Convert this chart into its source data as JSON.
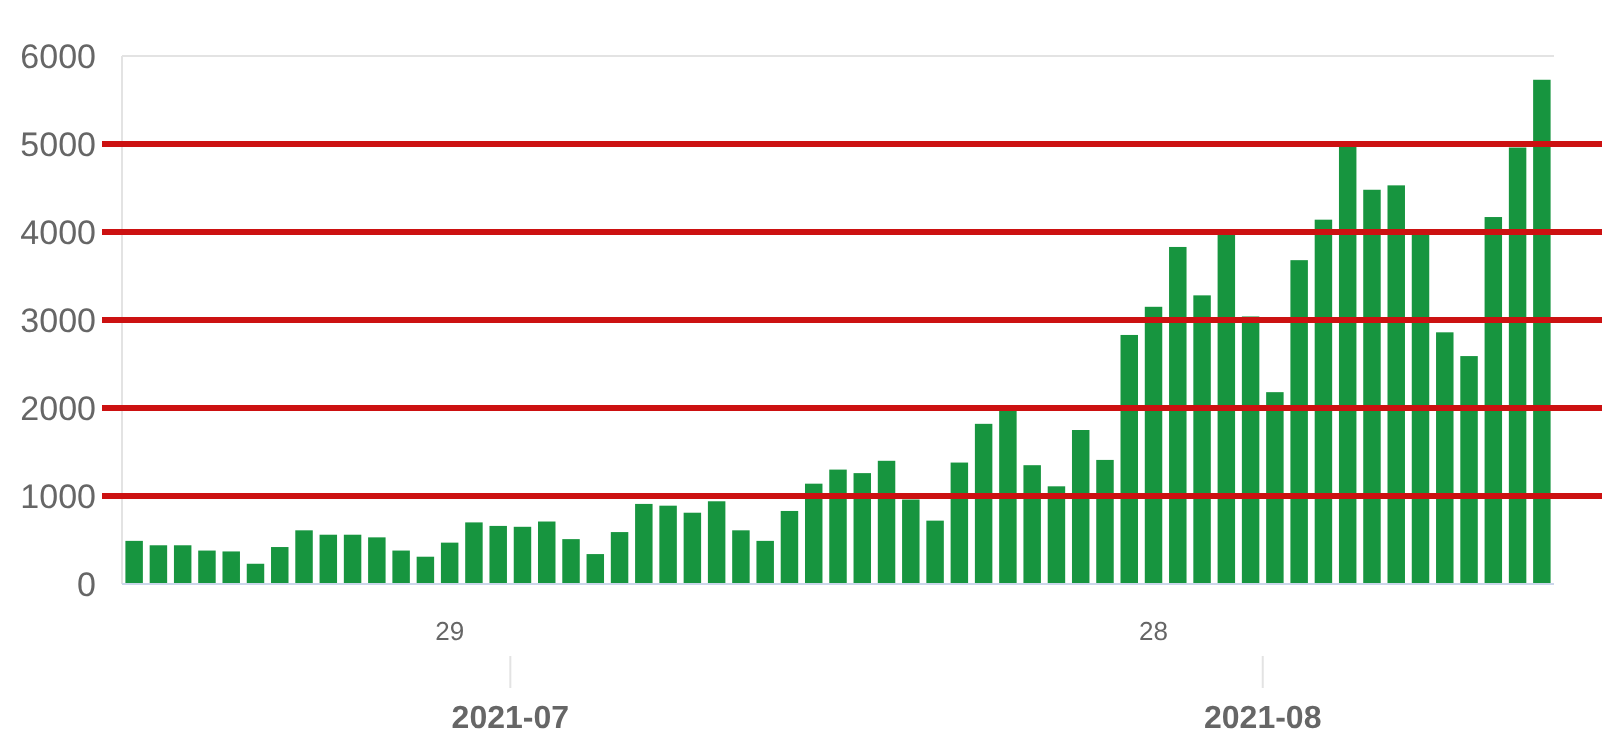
{
  "chart_data": {
    "type": "bar",
    "x": [
      "2021-06-16",
      "2021-06-17",
      "2021-06-18",
      "2021-06-19",
      "2021-06-20",
      "2021-06-21",
      "2021-06-22",
      "2021-06-23",
      "2021-06-24",
      "2021-06-25",
      "2021-06-26",
      "2021-06-27",
      "2021-06-28",
      "2021-06-29",
      "2021-06-30",
      "2021-07-01",
      "2021-07-02",
      "2021-07-03",
      "2021-07-04",
      "2021-07-05",
      "2021-07-06",
      "2021-07-07",
      "2021-07-08",
      "2021-07-09",
      "2021-07-10",
      "2021-07-11",
      "2021-07-12",
      "2021-07-13",
      "2021-07-14",
      "2021-07-15",
      "2021-07-16",
      "2021-07-17",
      "2021-07-18",
      "2021-07-19",
      "2021-07-20",
      "2021-07-21",
      "2021-07-22",
      "2021-07-23",
      "2021-07-24",
      "2021-07-25",
      "2021-07-26",
      "2021-07-27",
      "2021-07-28",
      "2021-07-29",
      "2021-07-30",
      "2021-07-31",
      "2021-08-01",
      "2021-08-02",
      "2021-08-03",
      "2021-08-04",
      "2021-08-05",
      "2021-08-06",
      "2021-08-07",
      "2021-08-08",
      "2021-08-09",
      "2021-08-10",
      "2021-08-11",
      "2021-08-12",
      "2021-08-13"
    ],
    "values": [
      490,
      440,
      440,
      380,
      370,
      230,
      420,
      610,
      560,
      560,
      530,
      380,
      310,
      470,
      700,
      660,
      650,
      710,
      510,
      340,
      590,
      910,
      890,
      810,
      940,
      610,
      490,
      830,
      1140,
      1300,
      1260,
      1400,
      960,
      720,
      1380,
      1820,
      1980,
      1350,
      1110,
      1750,
      1410,
      2830,
      3150,
      3830,
      3280,
      4030,
      3040,
      2180,
      3680,
      4140,
      4980,
      4480,
      4530,
      4030,
      2860,
      2590,
      4170,
      4960,
      5730
    ],
    "color": "#17953f",
    "xlim": [
      "2021-06-15T12:00",
      "2021-08-13T12:00"
    ],
    "xticks": [
      {
        "value": "2021-06-29",
        "label": "29"
      },
      {
        "value": "2021-07-28",
        "label": "28"
      }
    ],
    "x2lim": [
      "2021-06-15T12:00",
      "2021-08-13T12:00"
    ],
    "x2ticks": [
      {
        "value": "2021-07-01T12:00",
        "label": "2021-07"
      },
      {
        "value": "2021-08-01T12:00",
        "label": "2021-08"
      }
    ],
    "ylim": [
      0,
      6000
    ],
    "yticks": [
      0,
      1000,
      2000,
      3000,
      4000,
      5000,
      6000
    ],
    "ref_lines": [
      {
        "axis": "y",
        "value": 1000,
        "color": "#cc1111"
      },
      {
        "axis": "y",
        "value": 2000,
        "color": "#cc1111"
      },
      {
        "axis": "y",
        "value": 3000,
        "color": "#cc1111"
      },
      {
        "axis": "y",
        "value": 4000,
        "color": "#cc1111"
      },
      {
        "axis": "y",
        "value": 5000,
        "color": "#cc1111"
      }
    ]
  }
}
